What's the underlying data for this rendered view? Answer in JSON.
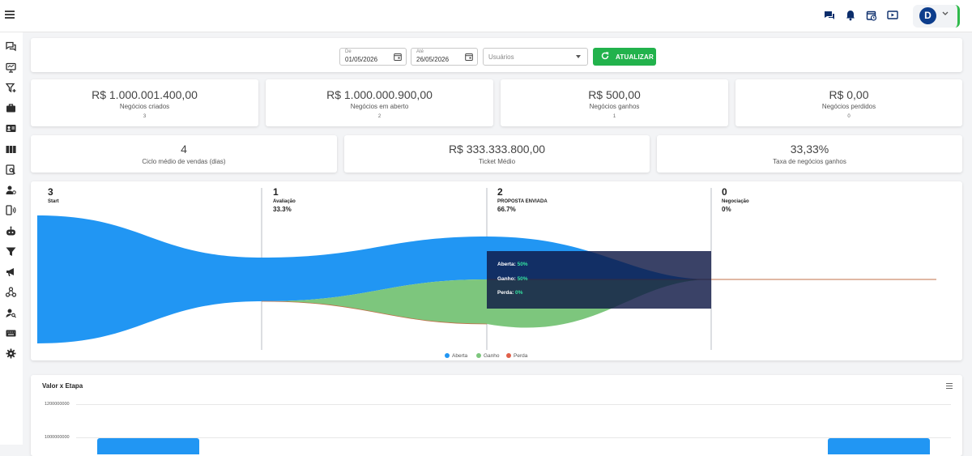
{
  "header": {
    "menu_icon": "hamburger-icon",
    "icons": [
      "chat-icon",
      "bell-icon",
      "calendar-clock-icon",
      "play-screen-icon"
    ],
    "user": {
      "initial": "D"
    },
    "accent": "#2fb94b"
  },
  "sidebar": {
    "icons": [
      "chat-bubbles-icon",
      "monitor-icon",
      "funnel-plus-icon",
      "briefcase-icon",
      "contact-card-icon",
      "board-columns-icon",
      "search-doc-icon",
      "user-settings-icon",
      "phone-signal-icon",
      "robot-icon",
      "filter-icon",
      "megaphone-icon",
      "network-icon",
      "user-search-icon",
      "keyboard-icon",
      "gear-icon"
    ]
  },
  "filters": {
    "from": {
      "label": "De",
      "value": "01/05/2026"
    },
    "to": {
      "label": "Até",
      "value": "26/05/2026"
    },
    "users": {
      "placeholder": "Usuários"
    },
    "update_label": "ATUALIZAR",
    "update_color": "#22b24c"
  },
  "stats_row1": [
    {
      "value": "R$ 1.000.001.400,00",
      "label": "Negócios criados",
      "count": "3"
    },
    {
      "value": "R$ 1.000.000.900,00",
      "label": "Negócios em aberto",
      "count": "2"
    },
    {
      "value": "R$ 500,00",
      "label": "Negócios ganhos",
      "count": "1"
    },
    {
      "value": "R$ 0,00",
      "label": "Negócios perdidos",
      "count": "0"
    }
  ],
  "stats_row2": [
    {
      "value": "4",
      "label": "Ciclo médio de vendas (dias)"
    },
    {
      "value": "R$ 333.333.800,00",
      "label": "Ticket Médio"
    },
    {
      "value": "33,33%",
      "label": "Taxa de negócios ganhos"
    }
  ],
  "funnel": {
    "stages": [
      {
        "count": "3",
        "name": "Start",
        "percent": ""
      },
      {
        "count": "1",
        "name": "Avaliação",
        "percent": "33.3%"
      },
      {
        "count": "2",
        "name": "PROPOSTA ENVIADA",
        "percent": "66.7%"
      },
      {
        "count": "0",
        "name": "Negociação",
        "percent": "0%"
      }
    ],
    "tooltip": [
      {
        "label": "Aberta:",
        "value": "50%"
      },
      {
        "label": "Ganho:",
        "value": "50%"
      },
      {
        "label": "Perda:",
        "value": "0%"
      }
    ],
    "legend": [
      {
        "name": "Aberta",
        "color": "#2196f3"
      },
      {
        "name": "Ganho",
        "color": "#7dc67d"
      },
      {
        "name": "Perda",
        "color": "#e0604a"
      }
    ]
  },
  "chart_data": {
    "type": "bar",
    "title": "Valor x Etapa",
    "yticks": [
      "1200000000",
      "1000000000"
    ]
  }
}
